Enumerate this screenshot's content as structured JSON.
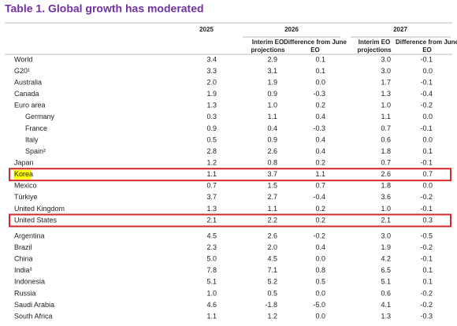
{
  "title": "Table  1. Global growth has moderated",
  "header": {
    "years": [
      "2025",
      "2026",
      "2027"
    ],
    "sub": [
      "Interim EO projections",
      "Difference from June EO",
      "Interim EO projections",
      "Difference from June EO"
    ]
  },
  "sections": [
    [
      [
        "World",
        "3.4",
        "2.9",
        "0.1",
        "3.0",
        "-0.1"
      ],
      [
        "G20¹",
        "3.3",
        "3.1",
        "0.1",
        "3.0",
        "0.0"
      ],
      [
        "Australia",
        "2.0",
        "1.9",
        "0.0",
        "1.7",
        "-0.1"
      ],
      [
        "Canada",
        "1.9",
        "0.9",
        "-0.3",
        "1.3",
        "-0.4"
      ],
      [
        "Euro area",
        "1.3",
        "1.0",
        "0.2",
        "1.0",
        "-0.2"
      ],
      [
        "Germany",
        "0.3",
        "1.1",
        "0.4",
        "1.1",
        "0.0"
      ],
      [
        "France",
        "0.9",
        "0.4",
        "-0.3",
        "0.7",
        "-0.1"
      ],
      [
        "Italy",
        "0.5",
        "0.9",
        "0.4",
        "0.6",
        "0.0"
      ],
      [
        "Spain²",
        "2.8",
        "2.6",
        "0.4",
        "1.8",
        "0.1"
      ],
      [
        "Japan",
        "1.2",
        "0.8",
        "0.2",
        "0.7",
        "-0.1"
      ],
      [
        "Korea",
        "1.1",
        "3.7",
        "1.1",
        "2.6",
        "0.7"
      ],
      [
        "Mexico",
        "0.7",
        "1.5",
        "0.7",
        "1.8",
        "0.0"
      ],
      [
        "Türkiye",
        "3.7",
        "2.7",
        "-0.4",
        "3.6",
        "-0.2"
      ],
      [
        "United Kingdom",
        "1.3",
        "1.1",
        "0.2",
        "1.0",
        "-0.1"
      ],
      [
        "United States",
        "2.1",
        "2.2",
        "0.2",
        "2.1",
        "0.3"
      ]
    ],
    [
      [
        "Argentina",
        "4.5",
        "2.6",
        "-0.2",
        "3.0",
        "-0.5"
      ],
      [
        "Brazil",
        "2.3",
        "2.0",
        "0.4",
        "1.9",
        "-0.2"
      ],
      [
        "China",
        "5.0",
        "4.5",
        "0.0",
        "4.2",
        "-0.1"
      ],
      [
        "India³",
        "7.8",
        "7.1",
        "0.8",
        "6.5",
        "0.1"
      ],
      [
        "Indonesia",
        "5.1",
        "5.2",
        "0.5",
        "5.1",
        "0.1"
      ],
      [
        "Russia",
        "1.0",
        "0.5",
        "0.0",
        "0.6",
        "-0.2"
      ],
      [
        "Saudi Arabia",
        "4.6",
        "-1.8",
        "-5.0",
        "4.1",
        "-0.2"
      ],
      [
        "South Africa",
        "1.1",
        "1.2",
        "0.0",
        "1.3",
        "-0.3"
      ]
    ]
  ]
}
